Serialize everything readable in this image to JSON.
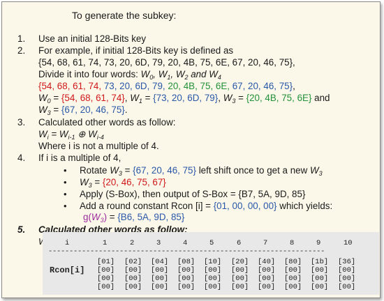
{
  "title": "To generate the subkey:",
  "s1": {
    "num": "1.",
    "text": "Use an initial 128-Bits key"
  },
  "s2": {
    "num": "2.",
    "line1": "For example, if initial 128-Bits key is defined as",
    "line2": "{54, 68, 61, 74, 73, 20, 6D, 79, 20, 4B, 75, 6E, 67, 20, 46, 75},",
    "line3_prefix": "Divide it into four words:",
    "w_red": "{54, 68, 61, 74,",
    "w_blue": " 73, 20, 6D, 79,",
    "w_green": " 20, 4B, 75, 6E,",
    "w_blue2": " 67, 20, 46, 75",
    "w0_set": "{54, 68, 61, 74}",
    "w1_set": "{73, 20, 6D, 79}",
    "w2_set": "{20, 4B, 75, 6E}",
    "w3_set": "{67, 20, 46, 75}"
  },
  "s3": {
    "num": "3.",
    "text": "Calculated other words as follow:",
    "note": "Where i is not a multiple of 4."
  },
  "s4": {
    "num": "4.",
    "text": "If i is a multiple of 4,",
    "b1": "Rotate W3 = {67, 20, 46, 75} left shift once to get a new W3",
    "b2_set": "{20, 46, 75, 67}",
    "b3": "Apply (S-Box), then output of S-Box = {B7, 5A, 9D, 85}",
    "b4_text": "Add a round constant Rcon [i] = ",
    "b4_set": "{01, 00, 00, 00}",
    "b4_tail": " which yields:",
    "b5_set": "{B6, 5A, 9D, 85}"
  },
  "s5": {
    "num": "5.",
    "text": "Calculated other words as follow:"
  },
  "table": {
    "i_label": "i",
    "cols": [
      "1",
      "2",
      "3",
      "4",
      "5",
      "6",
      "7",
      "8",
      "9",
      "10"
    ],
    "rcon_label": "Rcon[i]",
    "dashes": "------------------------------------------------------------------",
    "rows": [
      [
        "[01]",
        "[02]",
        "[04]",
        "[08]",
        "[10]",
        "[20]",
        "[40]",
        "[80]",
        "[1b]",
        "[36]"
      ],
      [
        "[00]",
        "[00]",
        "[00]",
        "[00]",
        "[00]",
        "[00]",
        "[00]",
        "[00]",
        "[00]",
        "[00]"
      ],
      [
        "[00]",
        "[00]",
        "[00]",
        "[00]",
        "[00]",
        "[00]",
        "[00]",
        "[00]",
        "[00]",
        "[00]"
      ],
      [
        "[00]",
        "[00]",
        "[00]",
        "[00]",
        "[00]",
        "[00]",
        "[00]",
        "[00]",
        "[00]",
        "[00]"
      ]
    ]
  }
}
